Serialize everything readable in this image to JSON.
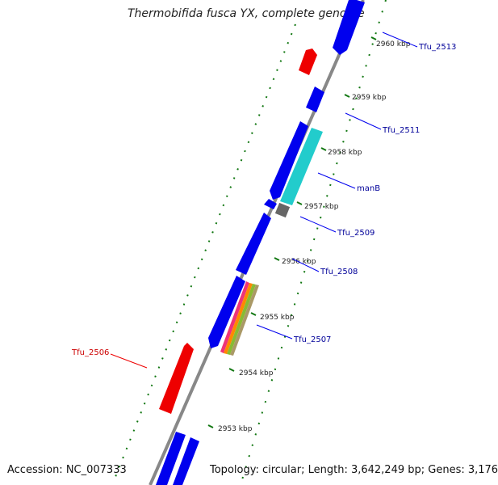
{
  "title": "Thermobifida fusca YX, complete genome",
  "accession": "Accession: NC_007333",
  "topology": "Topology: circular; Length: 3,642,249 bp; Genes: 3,176",
  "colors": {
    "backbone": "#888888",
    "cds": "#0000ee",
    "cds_reverse": "#ee0000",
    "manB": "#22cccc",
    "grey_feature": "#666666",
    "ticks": "#117711",
    "label_blue": "#000099",
    "label_red": "#cc0000"
  },
  "kbp_ticks": [
    {
      "label": "2960 kbp"
    },
    {
      "label": "2959 kbp"
    },
    {
      "label": "2958 kbp"
    },
    {
      "label": "2957 kbp"
    },
    {
      "label": "2956 kbp"
    },
    {
      "label": "2955 kbp"
    },
    {
      "label": "2954 kbp"
    },
    {
      "label": "2953 kbp"
    }
  ],
  "gene_labels": [
    {
      "name": "Tfu_2513",
      "color": "blue"
    },
    {
      "name": "Tfu_2511",
      "color": "blue"
    },
    {
      "name": "manB",
      "color": "blue"
    },
    {
      "name": "Tfu_2509",
      "color": "blue"
    },
    {
      "name": "Tfu_2508",
      "color": "blue"
    },
    {
      "name": "Tfu_2507",
      "color": "blue"
    },
    {
      "name": "Tfu_2506",
      "color": "red"
    }
  ]
}
